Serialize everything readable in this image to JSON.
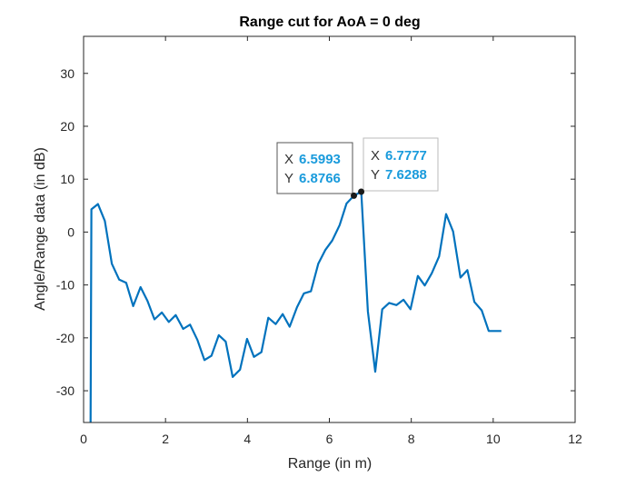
{
  "chart_data": {
    "type": "line",
    "title": "Range cut for AoA = 0 deg",
    "xlabel": "Range (in m)",
    "ylabel": "Angle/Range data (in dB)",
    "xlim": [
      0,
      12
    ],
    "ylim": [
      -36,
      37
    ],
    "xticks": [
      0,
      2,
      4,
      6,
      8,
      10,
      12
    ],
    "yticks": [
      -30,
      -20,
      -10,
      0,
      10,
      20,
      30
    ],
    "grid": false,
    "series": [
      {
        "color": "#0072BD",
        "x": [
          0.17,
          0.19,
          0.35,
          0.52,
          0.69,
          0.87,
          1.04,
          1.21,
          1.39,
          1.56,
          1.73,
          1.91,
          2.08,
          2.25,
          2.43,
          2.6,
          2.78,
          2.95,
          3.12,
          3.3,
          3.47,
          3.64,
          3.82,
          3.99,
          4.16,
          4.34,
          4.51,
          4.69,
          4.86,
          5.03,
          5.21,
          5.38,
          5.55,
          5.73,
          5.9,
          6.07,
          6.25,
          6.42,
          6.5993,
          6.7777,
          6.94,
          7.12,
          7.29,
          7.46,
          7.64,
          7.81,
          7.98,
          8.16,
          8.33,
          8.5,
          8.68,
          8.85,
          9.02,
          9.2,
          9.37,
          9.54,
          9.72,
          9.89,
          10.06,
          10.2
        ],
        "y": [
          -36,
          4.3,
          5.3,
          2.1,
          -6.0,
          -9.0,
          -9.6,
          -14.0,
          -10.4,
          -13.0,
          -16.5,
          -15.2,
          -17.0,
          -15.7,
          -18.3,
          -17.5,
          -20.4,
          -24.2,
          -23.4,
          -19.5,
          -20.7,
          -27.4,
          -26.0,
          -20.2,
          -23.6,
          -22.7,
          -16.2,
          -17.4,
          -15.5,
          -17.9,
          -14.2,
          -11.6,
          -11.2,
          -6.0,
          -3.4,
          -1.6,
          1.3,
          5.4,
          6.8766,
          7.6288,
          -15.0,
          -26.4,
          -14.6,
          -13.4,
          -13.8,
          -12.8,
          -14.6,
          -8.3,
          -10.1,
          -7.8,
          -4.6,
          3.4,
          0.1,
          -8.6,
          -7.2,
          -13.2,
          -14.8,
          -18.7,
          -18.7,
          -18.7
        ]
      }
    ],
    "datatips": [
      {
        "x_label": "X",
        "x_value": "6.5993",
        "y_label": "Y",
        "y_value": "6.8766"
      },
      {
        "x_label": "X",
        "x_value": "6.7777",
        "y_label": "Y",
        "y_value": "7.6288"
      }
    ]
  },
  "colors": {
    "line": "#0072BD",
    "datatip_value": "#1a9bdc",
    "axes": "#262626"
  }
}
